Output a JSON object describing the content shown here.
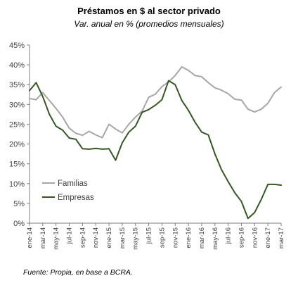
{
  "chart_data": {
    "type": "line",
    "title": "Préstamos en $ al sector privado",
    "subtitle": "Var. anual en % (promedios mensuales)",
    "source": "Fuente: Propia, en base a BCRA.",
    "ylim": [
      0,
      45
    ],
    "yticks": [
      0,
      5,
      10,
      15,
      20,
      25,
      30,
      35,
      40,
      45
    ],
    "ytick_labels": [
      "0%",
      "5%",
      "10%",
      "15%",
      "20%",
      "25%",
      "30%",
      "35%",
      "40%",
      "45%"
    ],
    "x": [
      "ene-14",
      "feb-14",
      "mar-14",
      "abr-14",
      "may-14",
      "jun-14",
      "jul-14",
      "ago-14",
      "sep-14",
      "oct-14",
      "nov-14",
      "dic-14",
      "ene-15",
      "feb-15",
      "mar-15",
      "abr-15",
      "may-15",
      "jun-15",
      "jul-15",
      "ago-15",
      "sep-15",
      "oct-15",
      "nov-15",
      "dic-15",
      "ene-16",
      "feb-16",
      "mar-16",
      "abr-16",
      "may-16",
      "jun-16",
      "jul-16",
      "ago-16",
      "sep-16",
      "oct-16",
      "nov-16",
      "dic-16",
      "ene-17",
      "feb-17",
      "mar-17"
    ],
    "xtick_labels": [
      "ene-14",
      "mar-14",
      "may-14",
      "jul-14",
      "sep-14",
      "nov-14",
      "ene-15",
      "mar-15",
      "may-15",
      "jul-15",
      "sep-15",
      "nov-15",
      "ene-16",
      "mar-16",
      "may-16",
      "jul-16",
      "sep-16",
      "nov-16",
      "ene-17",
      "mar-17"
    ],
    "series": [
      {
        "name": "Familias",
        "color": "#a6a6a6",
        "values": [
          31.5,
          31.2,
          33.0,
          31.0,
          29.0,
          26.8,
          24.0,
          22.7,
          22.2,
          23.2,
          22.3,
          21.6,
          25.0,
          23.8,
          22.8,
          25.0,
          26.8,
          28.3,
          31.8,
          32.6,
          34.5,
          35.7,
          37.3,
          39.5,
          38.6,
          37.3,
          37.0,
          35.5,
          34.2,
          33.6,
          32.7,
          31.3,
          31.1,
          28.8,
          28.1,
          28.8,
          30.3,
          33.0,
          34.4
        ]
      },
      {
        "name": "Empresas",
        "color": "#375623",
        "values": [
          33.5,
          35.5,
          32.0,
          27.5,
          24.5,
          23.5,
          21.5,
          21.2,
          18.8,
          18.7,
          18.9,
          18.7,
          18.8,
          15.9,
          20.3,
          23.0,
          24.5,
          28.0,
          28.7,
          29.8,
          31.2,
          36.0,
          35.0,
          31.0,
          28.5,
          25.5,
          23.0,
          22.3,
          17.5,
          13.5,
          10.5,
          7.7,
          5.5,
          1.2,
          2.7,
          6.0,
          9.8,
          9.8,
          9.6
        ]
      }
    ],
    "legend_position": "inside-left",
    "grid": false
  }
}
